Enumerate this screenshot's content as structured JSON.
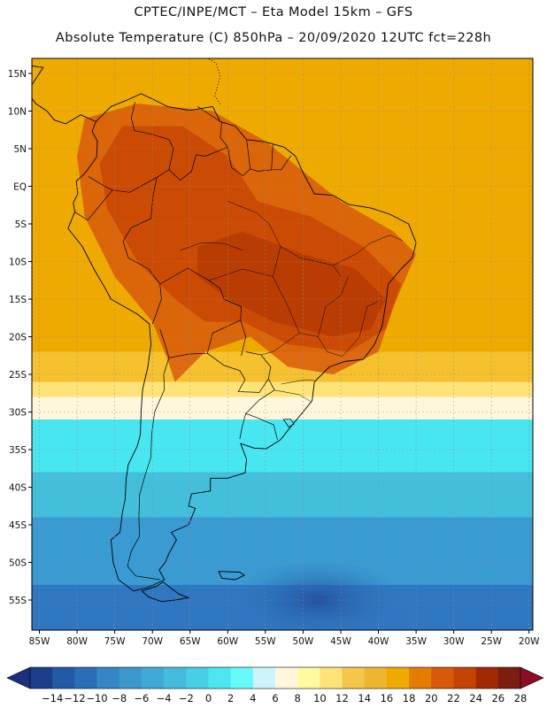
{
  "header": {
    "title_line1": "CPTEC/INPE/MCT –  Eta Model 15km – GFS",
    "title_line2": "Absolute Temperature (C) 850hPa – 20/09/2020 12UTC fct=228h"
  },
  "map": {
    "projection": "lat-lon",
    "lat_range": [
      -59,
      17
    ],
    "lon_range": [
      -86,
      -19.5
    ],
    "lat_ticks": [
      {
        "value": 15,
        "label": "15N"
      },
      {
        "value": 10,
        "label": "10N"
      },
      {
        "value": 5,
        "label": "5N"
      },
      {
        "value": 0,
        "label": "EQ"
      },
      {
        "value": -5,
        "label": "5S"
      },
      {
        "value": -10,
        "label": "10S"
      },
      {
        "value": -15,
        "label": "15S"
      },
      {
        "value": -20,
        "label": "20S"
      },
      {
        "value": -25,
        "label": "25S"
      },
      {
        "value": -30,
        "label": "30S"
      },
      {
        "value": -35,
        "label": "35S"
      },
      {
        "value": -40,
        "label": "40S"
      },
      {
        "value": -45,
        "label": "45S"
      },
      {
        "value": -50,
        "label": "50S"
      },
      {
        "value": -55,
        "label": "55S"
      }
    ],
    "lon_ticks": [
      {
        "value": -85,
        "label": "85W"
      },
      {
        "value": -80,
        "label": "80W"
      },
      {
        "value": -75,
        "label": "75W"
      },
      {
        "value": -70,
        "label": "70W"
      },
      {
        "value": -65,
        "label": "65W"
      },
      {
        "value": -60,
        "label": "60W"
      },
      {
        "value": -55,
        "label": "55W"
      },
      {
        "value": -50,
        "label": "50W"
      },
      {
        "value": -45,
        "label": "45W"
      },
      {
        "value": -40,
        "label": "40W"
      },
      {
        "value": -35,
        "label": "35W"
      },
      {
        "value": -30,
        "label": "30W"
      },
      {
        "value": -25,
        "label": "25W"
      },
      {
        "value": -20,
        "label": "20W"
      }
    ],
    "field_bands": [
      {
        "lat_top": 17,
        "lat_bottom": -22,
        "color": "#eeaa00"
      },
      {
        "lat_top": -22,
        "lat_bottom": -26,
        "color": "#f5c12f"
      },
      {
        "lat_top": -26,
        "lat_bottom": -28,
        "color": "#fee478"
      },
      {
        "lat_top": -28,
        "lat_bottom": -31,
        "color": "#fff7dc"
      },
      {
        "lat_top": -31,
        "lat_bottom": -38,
        "color": "#48e6f0"
      },
      {
        "lat_top": -38,
        "lat_bottom": -44,
        "color": "#43bfdc"
      },
      {
        "lat_top": -44,
        "lat_bottom": -53,
        "color": "#3a9ad2"
      },
      {
        "lat_top": -53,
        "lat_bottom": -59,
        "color": "#2f77c0"
      }
    ],
    "warm_core_colors": [
      "#d65a0a",
      "#c94704",
      "#b73c03"
    ],
    "coast_color": "#000000",
    "grid_color": "#8a8a8a"
  },
  "colorbar": {
    "labels": [
      "-14",
      "-12",
      "-10",
      "-8",
      "-6",
      "-4",
      "-2",
      "0",
      "2",
      "4",
      "6",
      "8",
      "10",
      "12",
      "14",
      "16",
      "18",
      "20",
      "22",
      "24",
      "26",
      "28"
    ],
    "colors": [
      "#1c3c8c",
      "#235aa6",
      "#2a6eb8",
      "#3586c6",
      "#3b98cf",
      "#40aad6",
      "#45bcde",
      "#48cfe6",
      "#4be6ef",
      "#66fafa",
      "#cdf4fb",
      "#fff7dc",
      "#fffaa0",
      "#fee478",
      "#f5c64a",
      "#eeb62f",
      "#eeaa00",
      "#e47c00",
      "#d65a0a",
      "#c44402",
      "#a12a04",
      "#7d1c10"
    ],
    "under_color": "#1a2f7d",
    "over_color": "#8c0c26"
  }
}
